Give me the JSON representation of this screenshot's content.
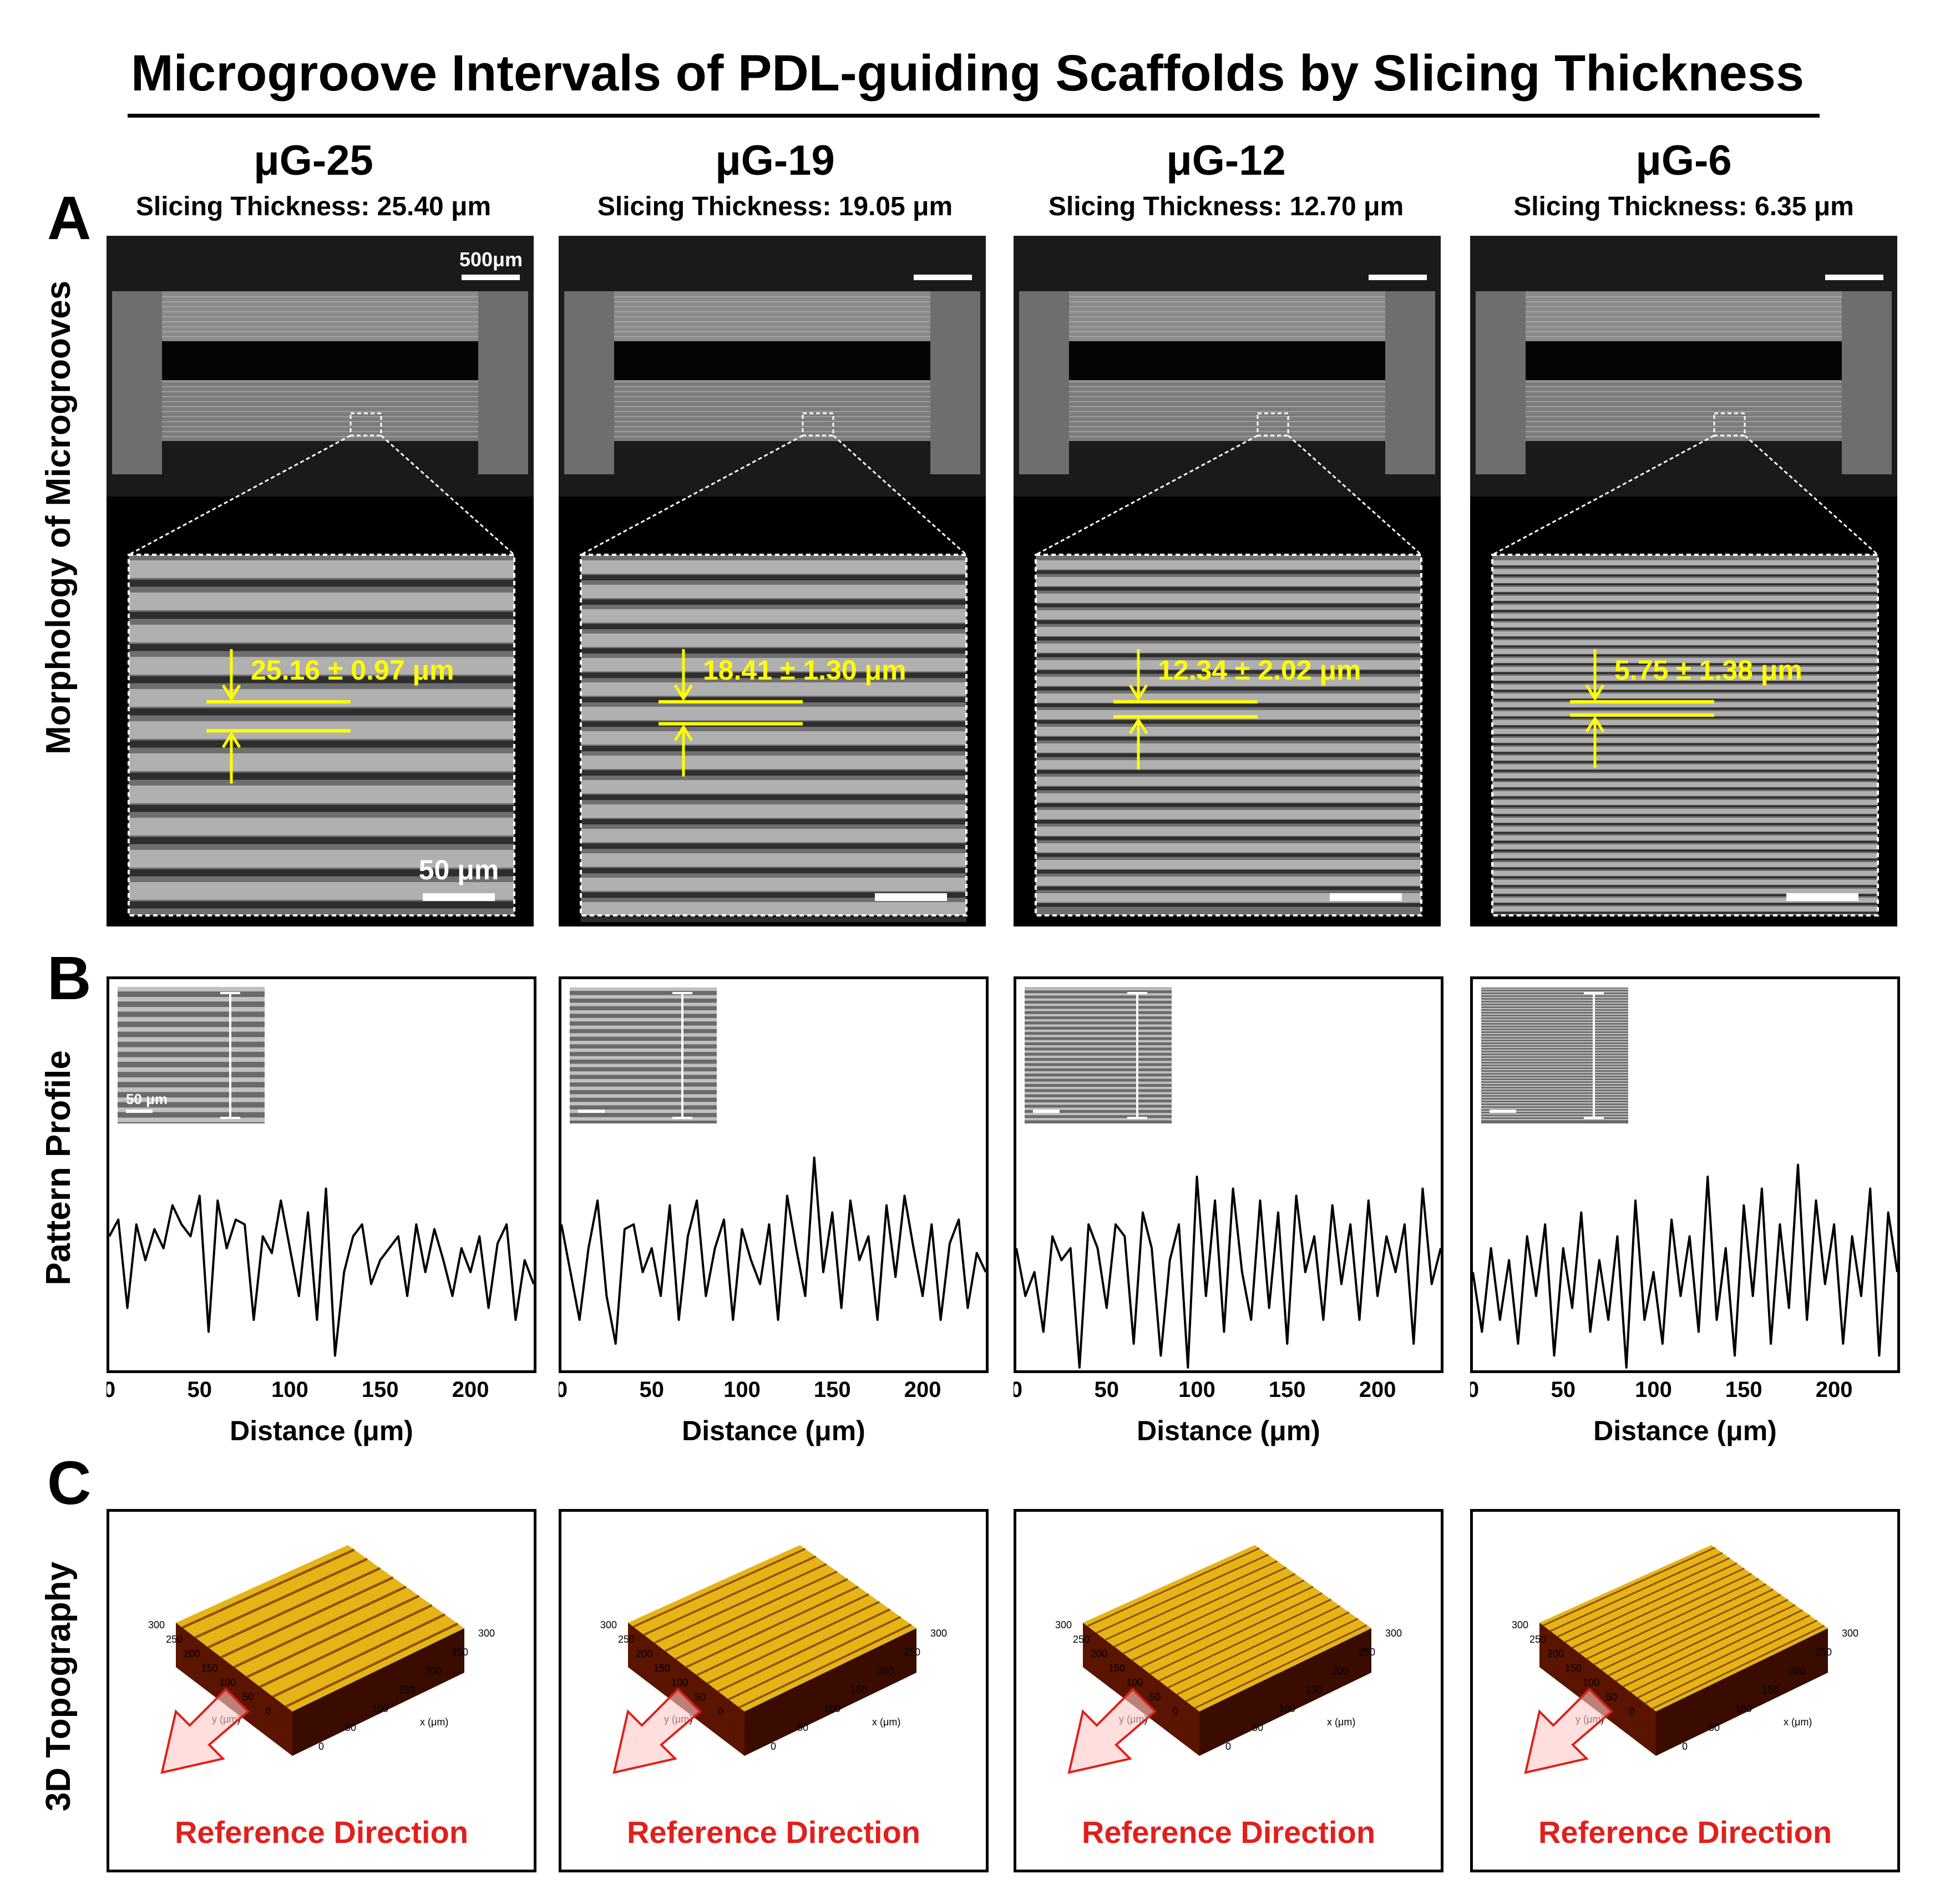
{
  "title": "Microgroove Intervals of PDL-guiding Scaffolds by Slicing Thickness",
  "panels": {
    "a": "A",
    "b": "B",
    "c": "C"
  },
  "row_labels": {
    "morphology": "Morphology of Microgrooves",
    "profile": "Pattern Profile",
    "topography": "3D Topography"
  },
  "columns": [
    {
      "name": "μG-25",
      "slicing": "Slicing Thickness: 25.40 μm",
      "measure": "25.16 ± 0.97 μm"
    },
    {
      "name": "μG-19",
      "slicing": "Slicing Thickness: 19.05 μm",
      "measure": "18.41 ± 1.30 μm"
    },
    {
      "name": "μG-12",
      "slicing": "Slicing Thickness: 12.70 μm",
      "measure": "12.34 ± 2.02 μm"
    },
    {
      "name": "μG-6",
      "slicing": "Slicing Thickness: 6.35 μm",
      "measure": "5.75 ± 1.38 μm"
    }
  ],
  "scalebars": {
    "overview": "500μm",
    "zoom": "50 μm",
    "inset": "50 μm"
  },
  "profile_axis": {
    "xlabel": "Distance (μm)",
    "ticks": [
      "0",
      "50",
      "100",
      "150",
      "200"
    ]
  },
  "topography": {
    "reference_label": "Reference Direction",
    "y_axis_label": "y (μm)",
    "x_axis_label": "x (μm)",
    "y_ticks": [
      "300",
      "250",
      "200",
      "150",
      "100",
      "50",
      "0"
    ],
    "x_ticks": [
      "300",
      "250",
      "200",
      "150",
      "100",
      "50",
      "0"
    ]
  },
  "colors": {
    "annotation": "#ffff00",
    "reference": "#e0201c",
    "topo_peak": "#e6b416",
    "topo_base": "#5a1400"
  },
  "chart_data": [
    {
      "type": "line",
      "title": "μG-25",
      "xlabel": "Distance (μm)",
      "ylabel": "",
      "xlim": [
        0,
        235
      ],
      "grid": false,
      "x": [
        0,
        5,
        10,
        15,
        20,
        25,
        30,
        35,
        40,
        45,
        50,
        55,
        60,
        65,
        70,
        75,
        80,
        85,
        90,
        95,
        100,
        105,
        110,
        115,
        120,
        125,
        130,
        135,
        140,
        145,
        150,
        155,
        160,
        165,
        170,
        175,
        180,
        185,
        190,
        195,
        200,
        205,
        210,
        215,
        220,
        225,
        230,
        235
      ],
      "y": [
        0.55,
        0.62,
        0.25,
        0.6,
        0.45,
        0.58,
        0.5,
        0.68,
        0.6,
        0.55,
        0.72,
        0.15,
        0.7,
        0.5,
        0.62,
        0.6,
        0.2,
        0.55,
        0.48,
        0.7,
        0.5,
        0.3,
        0.65,
        0.2,
        0.75,
        0.05,
        0.4,
        0.55,
        0.6,
        0.35,
        0.45,
        0.5,
        0.55,
        0.3,
        0.6,
        0.4,
        0.58,
        0.45,
        0.3,
        0.5,
        0.4,
        0.55,
        0.25,
        0.52,
        0.6,
        0.2,
        0.45,
        0.35
      ]
    },
    {
      "type": "line",
      "title": "μG-19",
      "xlabel": "Distance (μm)",
      "ylabel": "",
      "xlim": [
        0,
        235
      ],
      "grid": false,
      "x": [
        0,
        5,
        10,
        15,
        20,
        25,
        30,
        35,
        40,
        45,
        50,
        55,
        60,
        65,
        70,
        75,
        80,
        85,
        90,
        95,
        100,
        105,
        110,
        115,
        120,
        125,
        130,
        135,
        140,
        145,
        150,
        155,
        160,
        165,
        170,
        175,
        180,
        185,
        190,
        195,
        200,
        205,
        210,
        215,
        220,
        225,
        230,
        235
      ],
      "y": [
        0.6,
        0.4,
        0.2,
        0.5,
        0.7,
        0.3,
        0.1,
        0.58,
        0.6,
        0.4,
        0.5,
        0.3,
        0.68,
        0.2,
        0.55,
        0.7,
        0.3,
        0.5,
        0.62,
        0.2,
        0.58,
        0.45,
        0.35,
        0.6,
        0.2,
        0.72,
        0.5,
        0.3,
        0.88,
        0.4,
        0.65,
        0.25,
        0.7,
        0.45,
        0.55,
        0.2,
        0.68,
        0.38,
        0.72,
        0.5,
        0.3,
        0.6,
        0.2,
        0.52,
        0.62,
        0.25,
        0.48,
        0.4
      ]
    },
    {
      "type": "line",
      "title": "μG-12",
      "xlabel": "Distance (μm)",
      "ylabel": "",
      "xlim": [
        0,
        235
      ],
      "grid": false,
      "x": [
        0,
        5,
        10,
        15,
        20,
        25,
        30,
        35,
        40,
        45,
        50,
        55,
        60,
        65,
        70,
        75,
        80,
        85,
        90,
        95,
        100,
        105,
        110,
        115,
        120,
        125,
        130,
        135,
        140,
        145,
        150,
        155,
        160,
        165,
        170,
        175,
        180,
        185,
        190,
        195,
        200,
        205,
        210,
        215,
        220,
        225,
        230,
        235
      ],
      "y": [
        0.5,
        0.3,
        0.4,
        0.15,
        0.55,
        0.45,
        0.5,
        0.0,
        0.6,
        0.5,
        0.25,
        0.6,
        0.55,
        0.1,
        0.65,
        0.5,
        0.05,
        0.45,
        0.6,
        0.0,
        0.8,
        0.3,
        0.7,
        0.15,
        0.75,
        0.4,
        0.2,
        0.7,
        0.25,
        0.65,
        0.1,
        0.72,
        0.4,
        0.55,
        0.2,
        0.68,
        0.35,
        0.6,
        0.2,
        0.7,
        0.3,
        0.55,
        0.4,
        0.6,
        0.1,
        0.75,
        0.35,
        0.5
      ]
    },
    {
      "type": "line",
      "title": "μG-6",
      "xlabel": "Distance (μm)",
      "ylabel": "",
      "xlim": [
        0,
        235
      ],
      "grid": false,
      "x": [
        0,
        5,
        10,
        15,
        20,
        25,
        30,
        35,
        40,
        45,
        50,
        55,
        60,
        65,
        70,
        75,
        80,
        85,
        90,
        95,
        100,
        105,
        110,
        115,
        120,
        125,
        130,
        135,
        140,
        145,
        150,
        155,
        160,
        165,
        170,
        175,
        180,
        185,
        190,
        195,
        200,
        205,
        210,
        215,
        220,
        225,
        230,
        235
      ],
      "y": [
        0.4,
        0.15,
        0.5,
        0.2,
        0.45,
        0.1,
        0.55,
        0.3,
        0.6,
        0.05,
        0.5,
        0.25,
        0.65,
        0.15,
        0.45,
        0.2,
        0.55,
        0.0,
        0.7,
        0.2,
        0.4,
        0.1,
        0.62,
        0.3,
        0.55,
        0.15,
        0.8,
        0.2,
        0.5,
        0.05,
        0.68,
        0.3,
        0.75,
        0.1,
        0.6,
        0.25,
        0.85,
        0.2,
        0.7,
        0.35,
        0.6,
        0.1,
        0.55,
        0.3,
        0.75,
        0.05,
        0.65,
        0.4
      ]
    }
  ]
}
